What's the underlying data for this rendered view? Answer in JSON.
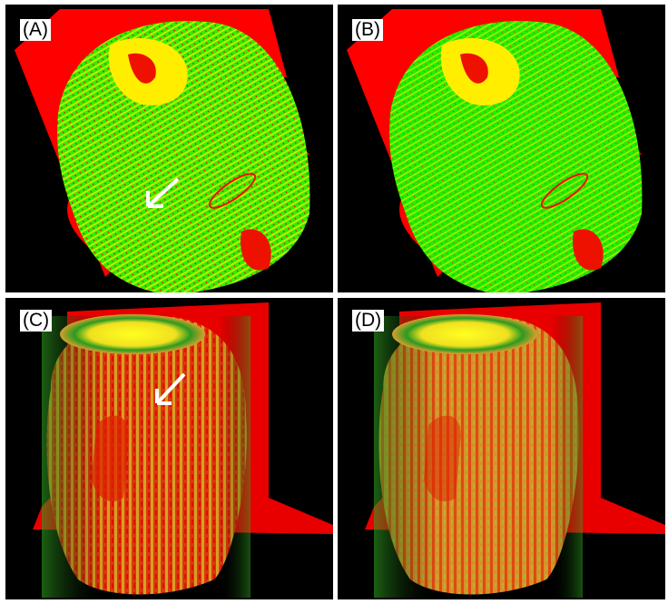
{
  "panels": [
    {
      "label": "(A)"
    },
    {
      "label": "(B)"
    },
    {
      "label": "(C)"
    },
    {
      "label": "(D)"
    }
  ],
  "colors": {
    "background": "#000000",
    "red": "#ff0000",
    "green": "#22ee00",
    "yellow": "#ffff00",
    "arrow": "#ffffff"
  }
}
